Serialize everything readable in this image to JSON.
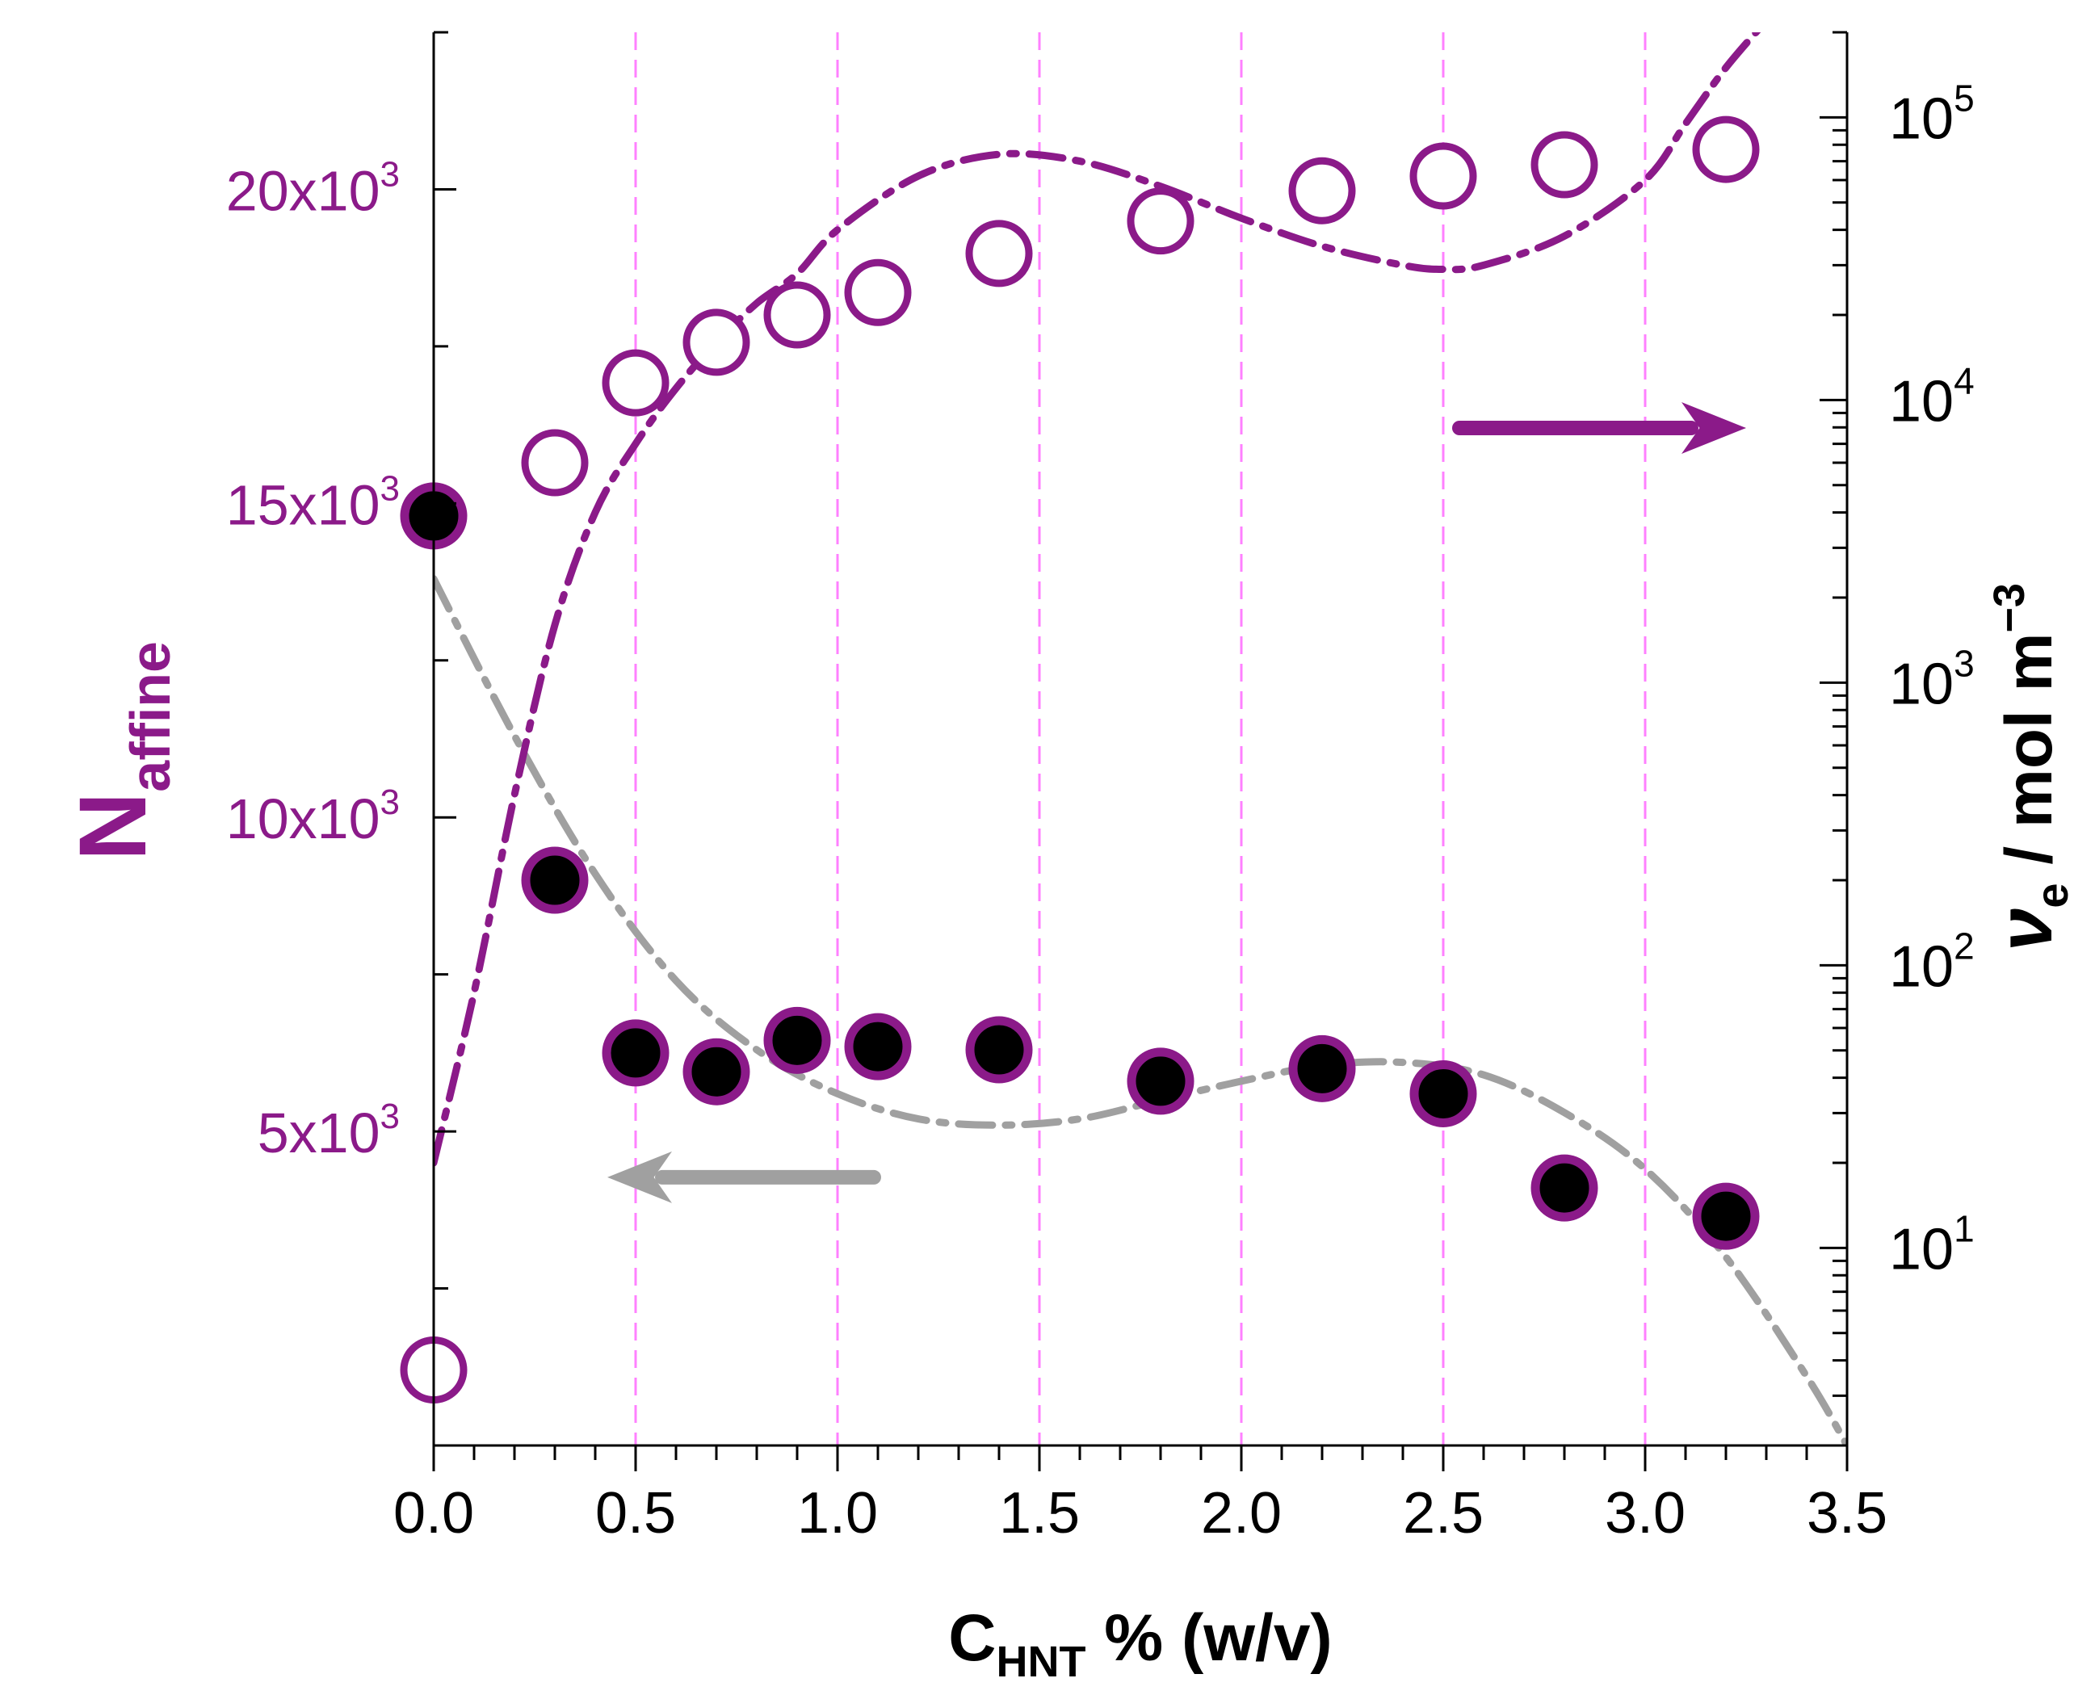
{
  "chart_data": {
    "type": "scatter",
    "x_axis": {
      "label_main": "C",
      "label_sub": "HNT",
      "label_rest": " % (w/v)",
      "range": [
        0,
        3.5
      ],
      "tick_values": [
        0,
        0.5,
        1.0,
        1.5,
        2.0,
        2.5,
        3.0,
        3.5
      ],
      "tick_labels": [
        "0.0",
        "0.5",
        "1.0",
        "1.5",
        "2.0",
        "2.5",
        "3.0",
        "3.5"
      ],
      "gridlines_at": [
        0.5,
        1.0,
        1.5,
        2.0,
        2.5,
        3.0
      ]
    },
    "y_left": {
      "label_main": "N",
      "label_sub": "affine",
      "range": [
        0,
        22500
      ],
      "ticks": [
        {
          "value": 5000,
          "base": "5x10",
          "exp": "3"
        },
        {
          "value": 10000,
          "base": "10x10",
          "exp": "3"
        },
        {
          "value": 15000,
          "base": "15x10",
          "exp": "3"
        },
        {
          "value": 20000,
          "base": "20x10",
          "exp": "3"
        }
      ]
    },
    "y_right": {
      "label_main": "ν",
      "label_sub": "e",
      "label_rest": "  /  mol m",
      "label_sup": "−3",
      "scale": "log",
      "range": [
        2,
        200000
      ],
      "ticks": [
        {
          "value": 10,
          "base": "10",
          "exp": "1"
        },
        {
          "value": 100,
          "base": "10",
          "exp": "2"
        },
        {
          "value": 1000,
          "base": "10",
          "exp": "3"
        },
        {
          "value": 10000,
          "base": "10",
          "exp": "4"
        },
        {
          "value": 100000,
          "base": "10",
          "exp": "5"
        }
      ]
    },
    "series": [
      {
        "name": "N_affine",
        "axis": "left",
        "marker": "filled-circle",
        "x": [
          0.0,
          0.3,
          0.5,
          0.7,
          0.9,
          1.1,
          1.4,
          1.8,
          2.2,
          2.5,
          2.8,
          3.2
        ],
        "y": [
          14800,
          9000,
          6250,
          5950,
          6450,
          6350,
          6300,
          5800,
          6000,
          5600,
          4100,
          3650
        ]
      },
      {
        "name": "nu_e",
        "axis": "right",
        "marker": "open-circle",
        "x": [
          0.0,
          0.3,
          0.5,
          0.7,
          0.9,
          1.1,
          1.4,
          1.8,
          2.2,
          2.5,
          2.8,
          3.2
        ],
        "y": [
          3.7,
          6000,
          11500,
          16000,
          20000,
          24000,
          33000,
          43000,
          55000,
          62000,
          68000,
          77000
        ]
      }
    ],
    "fits": [
      {
        "name": "N_affine fit",
        "axis": "left",
        "color": "#a0a0a0",
        "x": [
          0.0,
          0.2,
          0.4,
          0.6,
          0.8,
          1.0,
          1.2,
          1.4,
          1.6,
          1.8,
          2.0,
          2.2,
          2.4,
          2.6,
          2.8,
          3.0,
          3.2,
          3.4,
          3.5
        ],
        "y": [
          13800,
          11300,
          9100,
          7400,
          6300,
          5600,
          5200,
          5100,
          5200,
          5500,
          5800,
          6050,
          6100,
          5900,
          5300,
          4400,
          3000,
          1100,
          0
        ]
      },
      {
        "name": "nu_e fit",
        "axis": "right",
        "color": "#8b1a89",
        "x": [
          0.0,
          0.1,
          0.2,
          0.3,
          0.4,
          0.5,
          0.6,
          0.7,
          0.8,
          0.9,
          1.0,
          1.2,
          1.4,
          1.6,
          1.8,
          2.0,
          2.2,
          2.4,
          2.5,
          2.6,
          2.8,
          3.0,
          3.1,
          3.2,
          3.3
        ],
        "y": [
          20,
          80,
          400,
          1600,
          4000,
          7000,
          11000,
          16000,
          22000,
          28000,
          40000,
          62000,
          74000,
          70000,
          57000,
          44000,
          35000,
          30000,
          29000,
          30000,
          38000,
          60000,
          95000,
          150000,
          220000
        ]
      }
    ],
    "annotations": [
      {
        "type": "arrow",
        "direction": "right",
        "color": "#8b1a89",
        "x_from": 2.54,
        "x_to": 3.25,
        "y_left": 16200
      },
      {
        "type": "arrow",
        "direction": "left",
        "color": "#a0a0a0",
        "x_from": 1.09,
        "x_to": 0.43,
        "y_left": 4270
      }
    ],
    "colors": {
      "purple": "#8b1a89",
      "gray": "#a0a0a0",
      "grid": "#ff80ff",
      "black": "#000000"
    }
  }
}
